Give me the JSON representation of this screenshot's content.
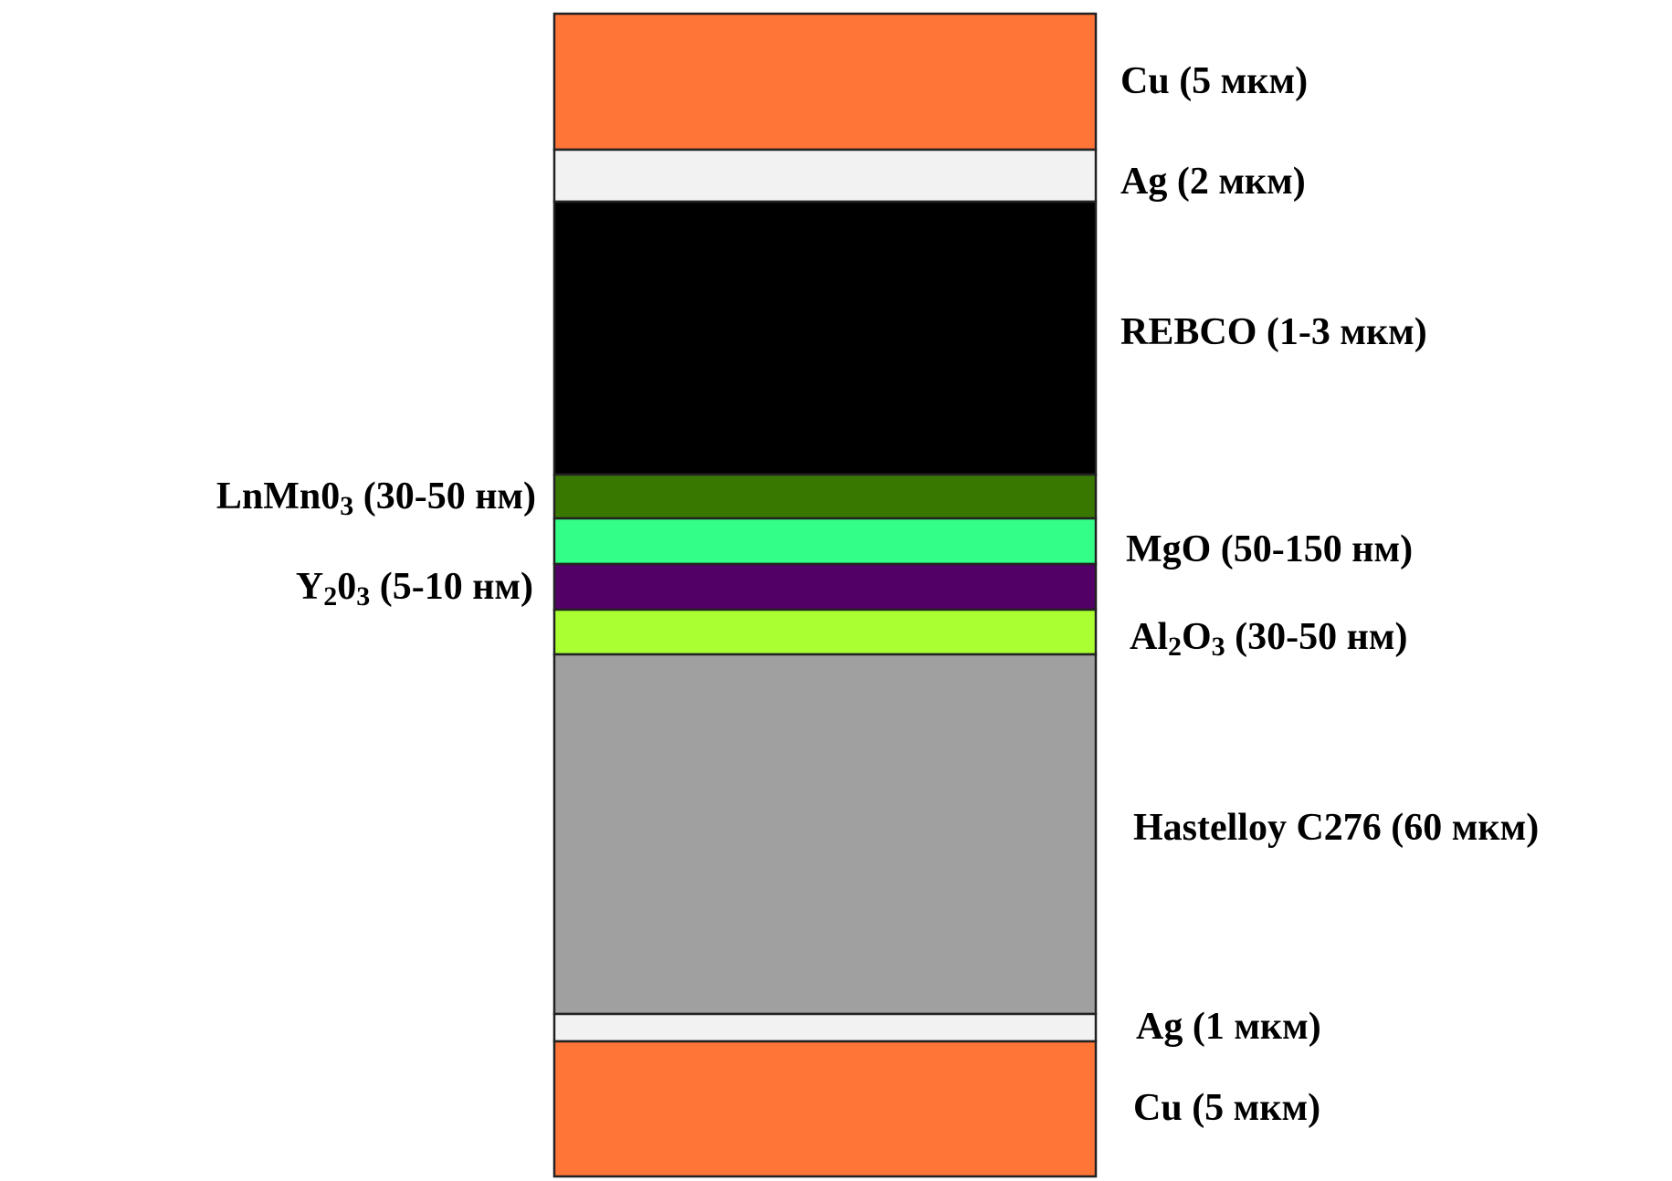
{
  "layers": [
    {
      "label": [
        "Cu (5 мкм)"
      ],
      "color": "#ff7538",
      "side": "right"
    },
    {
      "label": [
        "Ag (2 мкм)"
      ],
      "color": "#f2f2f2",
      "side": "right"
    },
    {
      "label": [
        "REBCO (1-3 мкм)"
      ],
      "color": "#000000",
      "side": "right"
    },
    {
      "label": [
        "LnMn0",
        "3",
        " (30-50 нм)"
      ],
      "color": "#387800",
      "side": "left"
    },
    {
      "label": [
        "MgO (50-150 нм)"
      ],
      "color": "#33ff88",
      "side": "right"
    },
    {
      "label": [
        "Y",
        "2",
        "0",
        "3",
        " (5-10 нм)"
      ],
      "color": "#520066",
      "side": "left"
    },
    {
      "label": [
        "Al",
        "2",
        "O",
        "3",
        " (30-50 нм)"
      ],
      "color": "#aaff33",
      "side": "right"
    },
    {
      "label": [
        "Hastelloy C276 (60 мкм)"
      ],
      "color": "#a0a0a0",
      "side": "right"
    },
    {
      "label": [
        "Ag (1 мкм)"
      ],
      "color": "#f2f2f2",
      "side": "right"
    },
    {
      "label": [
        "Cu (5 мкм)"
      ],
      "color": "#ff7538",
      "side": "right"
    }
  ]
}
